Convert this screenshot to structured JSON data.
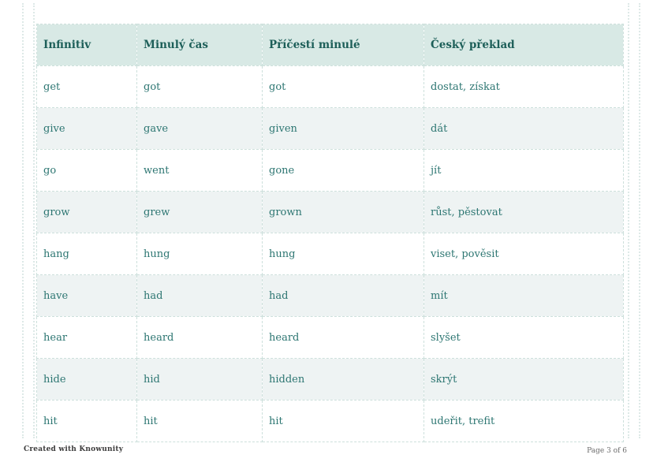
{
  "table": {
    "columns": [
      "Infinitiv",
      "Minulý čas",
      "Příčestí minulé",
      "Český překlad"
    ],
    "rows": [
      [
        "get",
        "got",
        "got",
        "dostat, získat"
      ],
      [
        "give",
        "gave",
        "given",
        "dát"
      ],
      [
        "go",
        "went",
        "gone",
        "jít"
      ],
      [
        "grow",
        "grew",
        "grown",
        "růst, pěstovat"
      ],
      [
        "hang",
        "hung",
        "hung",
        "viset, pověsit"
      ],
      [
        "have",
        "had",
        "had",
        "mít"
      ],
      [
        "hear",
        "heard",
        "heard",
        "slyšet"
      ],
      [
        "hide",
        "hid",
        "hidden",
        "skrýt"
      ],
      [
        "hit",
        "hit",
        "hit",
        "udeřit, trefit"
      ]
    ]
  },
  "footer": {
    "left": "Created with Knowunity",
    "right": "Page 3 of 6"
  },
  "colors": {
    "header_bg": "#d8e9e5",
    "header_text": "#1d5f59",
    "body_text": "#2d7672",
    "alt_row_bg": "#eef3f3",
    "cell_border": "#cde0dc",
    "guide_dots": "#dde9e7"
  }
}
